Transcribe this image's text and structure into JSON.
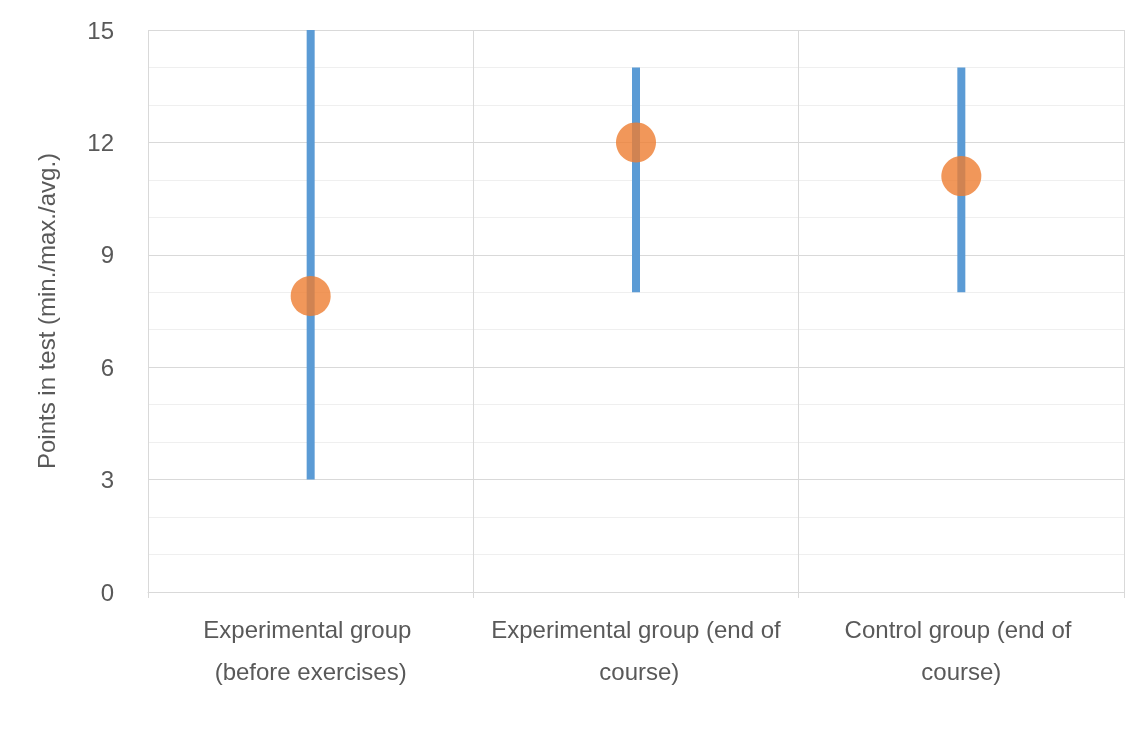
{
  "chart_data": {
    "type": "scatter",
    "ylabel": "Points in test (min./max./avg.)",
    "categories": [
      "Experimental group (before exercises)",
      "Experimental group (end of course)",
      "Control group (end of course)"
    ],
    "series": [
      {
        "color": "#ed7d31",
        "values": [
          7.9,
          12,
          11.1
        ],
        "errors": [
          [
            3,
            15
          ],
          [
            8,
            14
          ],
          [
            8,
            14
          ]
        ]
      }
    ],
    "ylim": [
      0,
      15
    ],
    "yticks": [
      0,
      3,
      6,
      9,
      12,
      15
    ],
    "grid": true,
    "marker": "circle"
  }
}
